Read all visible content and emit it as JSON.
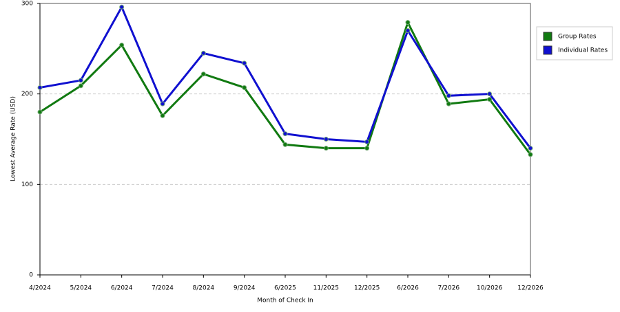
{
  "chart_data": {
    "type": "line",
    "x_label": "Month of Check In",
    "y_label": "Lowest Average Rate (USD)",
    "categories": [
      "4/2024",
      "5/2024",
      "6/2024",
      "7/2024",
      "8/2024",
      "9/2024",
      "6/2025",
      "11/2025",
      "12/2025",
      "6/2026",
      "7/2026",
      "10/2026",
      "12/2026"
    ],
    "series": [
      {
        "name": "Group Rates",
        "color": "#117a11",
        "values": [
          180,
          209,
          254,
          176,
          222,
          207,
          144,
          140,
          140,
          279,
          189,
          194,
          133
        ]
      },
      {
        "name": "Individual Rates",
        "color": "#1010d0",
        "values": [
          207,
          215,
          296,
          189,
          245,
          234,
          156,
          150,
          147,
          270,
          198,
          200,
          140
        ]
      }
    ],
    "ylim": [
      0,
      300
    ],
    "yticks": [
      0,
      100,
      200,
      300
    ],
    "grid": true,
    "legend": "right"
  }
}
